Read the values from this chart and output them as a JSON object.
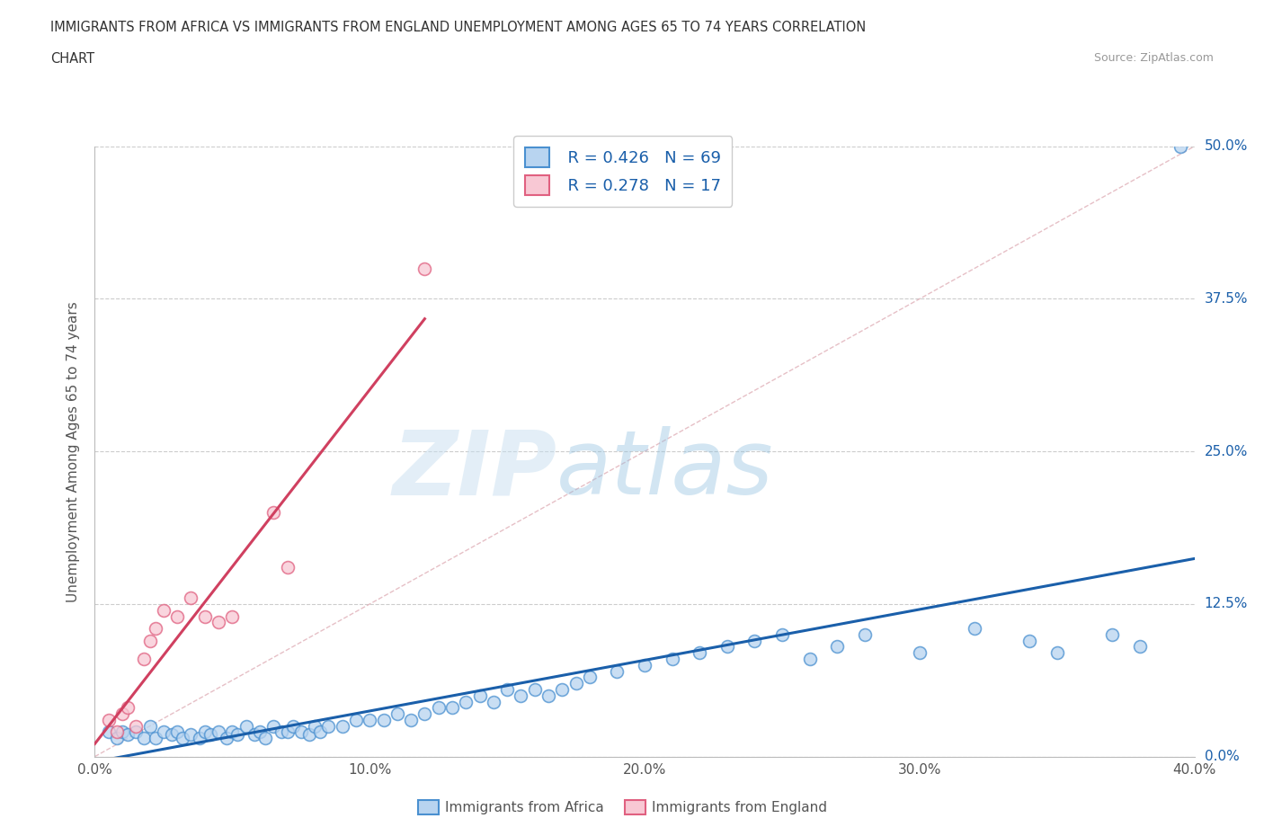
{
  "title_line1": "IMMIGRANTS FROM AFRICA VS IMMIGRANTS FROM ENGLAND UNEMPLOYMENT AMONG AGES 65 TO 74 YEARS CORRELATION",
  "title_line2": "CHART",
  "source": "Source: ZipAtlas.com",
  "ylabel": "Unemployment Among Ages 65 to 74 years",
  "xlim": [
    0,
    0.4
  ],
  "ylim": [
    0,
    0.5
  ],
  "ytick_vals": [
    0.0,
    0.125,
    0.25,
    0.375,
    0.5
  ],
  "xtick_vals": [
    0.0,
    0.1,
    0.2,
    0.3,
    0.4
  ],
  "legend_r1": "R = 0.426",
  "legend_n1": "N = 69",
  "legend_r2": "R = 0.278",
  "legend_n2": "N = 17",
  "color_africa_fill": "#b8d4f0",
  "color_africa_edge": "#4a90d0",
  "color_england_fill": "#f8c8d4",
  "color_england_edge": "#e06080",
  "color_africa_line": "#1a5faa",
  "color_england_line": "#d04060",
  "color_label_blue": "#1a5faa",
  "africa_x": [
    0.005,
    0.008,
    0.01,
    0.012,
    0.015,
    0.018,
    0.02,
    0.022,
    0.025,
    0.028,
    0.03,
    0.032,
    0.035,
    0.038,
    0.04,
    0.042,
    0.045,
    0.048,
    0.05,
    0.052,
    0.055,
    0.058,
    0.06,
    0.062,
    0.065,
    0.068,
    0.07,
    0.072,
    0.075,
    0.078,
    0.08,
    0.082,
    0.085,
    0.09,
    0.095,
    0.1,
    0.105,
    0.11,
    0.115,
    0.12,
    0.125,
    0.13,
    0.135,
    0.14,
    0.145,
    0.15,
    0.155,
    0.16,
    0.165,
    0.17,
    0.175,
    0.18,
    0.19,
    0.2,
    0.21,
    0.22,
    0.23,
    0.24,
    0.25,
    0.26,
    0.27,
    0.28,
    0.3,
    0.32,
    0.34,
    0.35,
    0.37,
    0.38,
    0.395
  ],
  "africa_y": [
    0.02,
    0.015,
    0.02,
    0.018,
    0.02,
    0.015,
    0.025,
    0.015,
    0.02,
    0.018,
    0.02,
    0.015,
    0.018,
    0.015,
    0.02,
    0.018,
    0.02,
    0.015,
    0.02,
    0.018,
    0.025,
    0.018,
    0.02,
    0.015,
    0.025,
    0.02,
    0.02,
    0.025,
    0.02,
    0.018,
    0.025,
    0.02,
    0.025,
    0.025,
    0.03,
    0.03,
    0.03,
    0.035,
    0.03,
    0.035,
    0.04,
    0.04,
    0.045,
    0.05,
    0.045,
    0.055,
    0.05,
    0.055,
    0.05,
    0.055,
    0.06,
    0.065,
    0.07,
    0.075,
    0.08,
    0.085,
    0.09,
    0.095,
    0.1,
    0.08,
    0.09,
    0.1,
    0.085,
    0.105,
    0.095,
    0.085,
    0.1,
    0.09,
    0.5
  ],
  "england_x": [
    0.005,
    0.008,
    0.01,
    0.012,
    0.015,
    0.018,
    0.02,
    0.022,
    0.025,
    0.03,
    0.035,
    0.04,
    0.045,
    0.05,
    0.065,
    0.07,
    0.12
  ],
  "england_y": [
    0.03,
    0.02,
    0.035,
    0.04,
    0.025,
    0.08,
    0.095,
    0.105,
    0.12,
    0.115,
    0.13,
    0.115,
    0.11,
    0.115,
    0.2,
    0.155,
    0.4
  ]
}
